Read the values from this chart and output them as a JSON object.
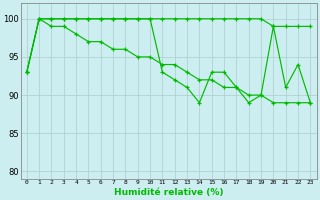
{
  "x": [
    0,
    1,
    2,
    3,
    4,
    5,
    6,
    7,
    8,
    9,
    10,
    11,
    12,
    13,
    14,
    15,
    16,
    17,
    18,
    19,
    20,
    21,
    22,
    23
  ],
  "line1": [
    93,
    100,
    100,
    100,
    100,
    100,
    100,
    100,
    100,
    100,
    100,
    93,
    92,
    91,
    89,
    93,
    93,
    91,
    89,
    90,
    99,
    91,
    94,
    89
  ],
  "line2": [
    93,
    100,
    100,
    100,
    100,
    100,
    100,
    100,
    100,
    100,
    100,
    100,
    100,
    100,
    100,
    100,
    100,
    100,
    100,
    100,
    99,
    99,
    99,
    99
  ],
  "line3": [
    93,
    100,
    99,
    99,
    98,
    97,
    97,
    96,
    96,
    95,
    95,
    94,
    94,
    93,
    92,
    92,
    91,
    91,
    90,
    90,
    89,
    89,
    89,
    89
  ],
  "line_color": "#00bb00",
  "bg_color": "#cceef0",
  "grid_color": "#aacccc",
  "xlabel": "Humidité relative (%)",
  "ylim": [
    79,
    102
  ],
  "xlim": [
    -0.5,
    23.5
  ],
  "yticks": [
    80,
    85,
    90,
    95,
    100
  ],
  "xtick_labels": [
    "0",
    "1",
    "2",
    "3",
    "4",
    "5",
    "6",
    "7",
    "8",
    "9",
    "10",
    "11",
    "12",
    "13",
    "14",
    "15",
    "16",
    "17",
    "18",
    "19",
    "20",
    "21",
    "22",
    "23"
  ]
}
